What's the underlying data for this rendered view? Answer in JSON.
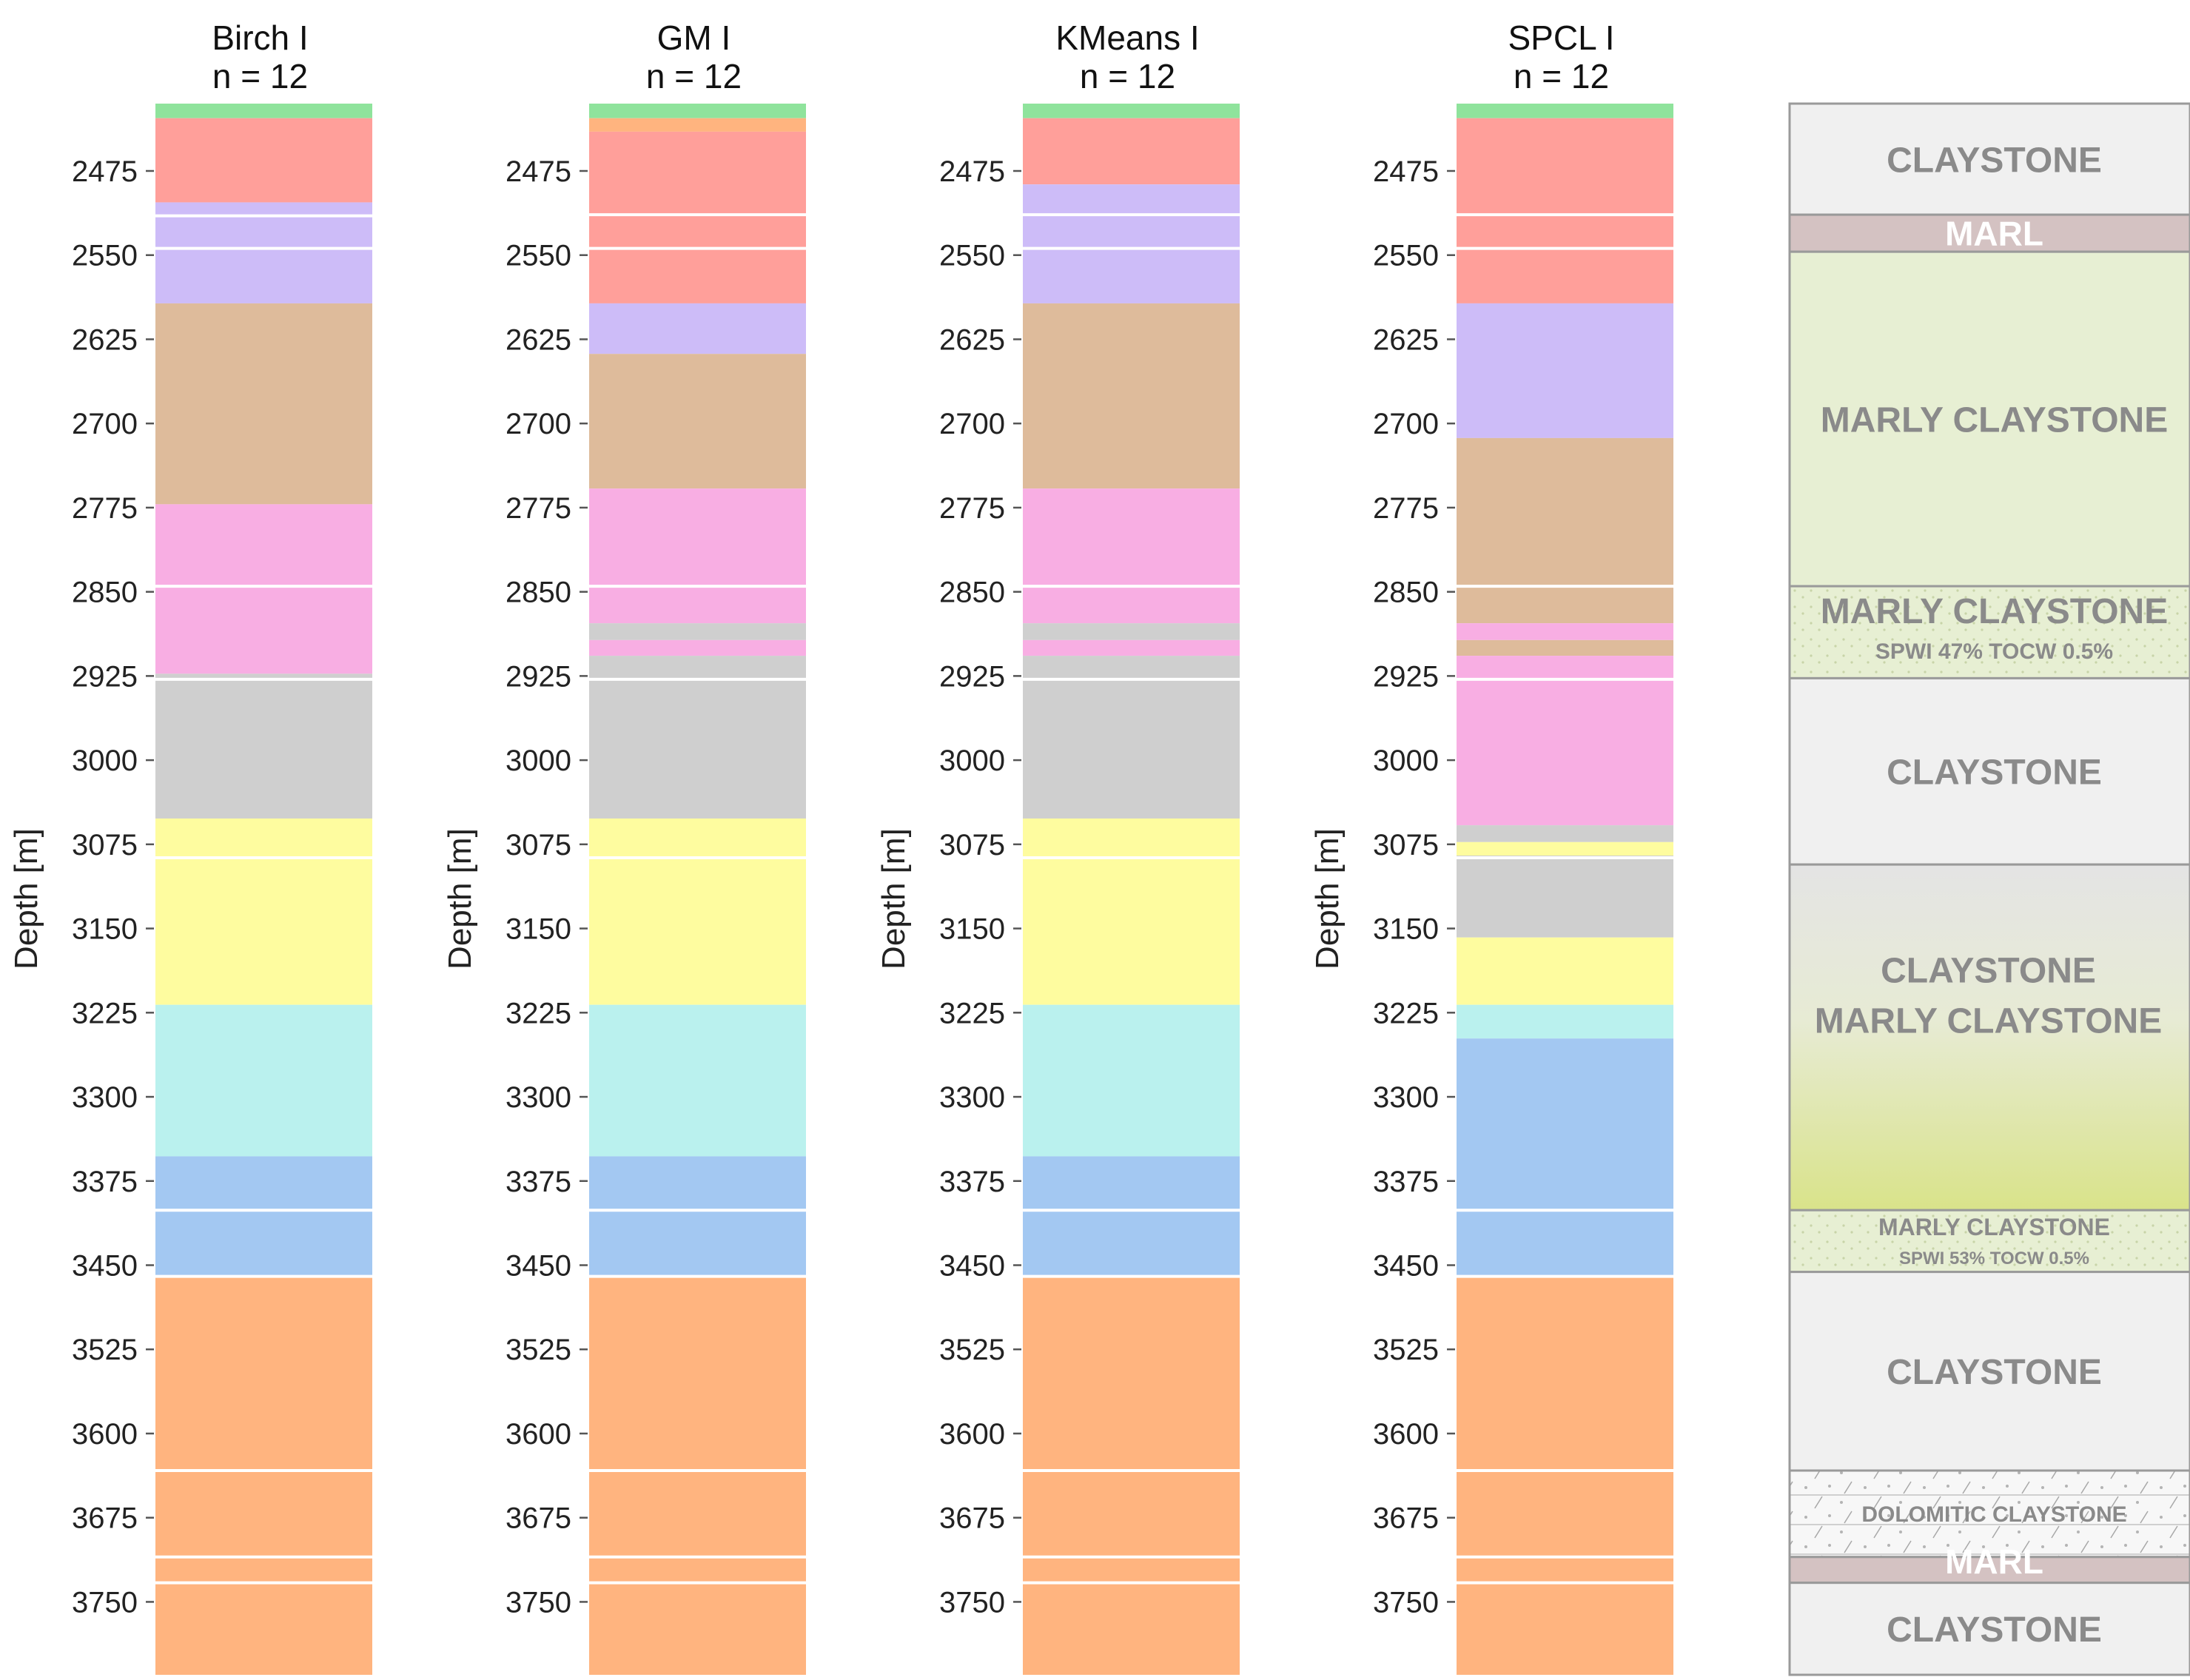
{
  "chart_data": {
    "type": "strip",
    "depth_range": [
      2415,
      3815
    ],
    "ylabel": "Depth [m]",
    "yticks": [
      2475,
      2550,
      2625,
      2700,
      2775,
      2850,
      2925,
      3000,
      3075,
      3150,
      3225,
      3300,
      3375,
      3450,
      3525,
      3600,
      3675,
      3750
    ],
    "cluster_colors": {
      "green": "#8fe39c",
      "red": "#ff9f9a",
      "lavender": "#cdbcf8",
      "tan": "#debb9b",
      "pink": "#f8aee3",
      "grey": "#cfcfcf",
      "yellow": "#fefc9f",
      "cyan": "#baf1ee",
      "blue": "#a3c8f2",
      "orange": "#ffb47f"
    },
    "columns": [
      {
        "title": "Birch I",
        "subtitle": "n = 12",
        "segments": [
          {
            "from": 2415,
            "to": 2428,
            "cluster": "green"
          },
          {
            "from": 2428,
            "to": 2503,
            "cluster": "red"
          },
          {
            "from": 2503,
            "to": 2593,
            "cluster": "lavender"
          },
          {
            "from": 2593,
            "to": 2772,
            "cluster": "tan"
          },
          {
            "from": 2772,
            "to": 2923,
            "cluster": "pink"
          },
          {
            "from": 2923,
            "to": 3052,
            "cluster": "grey"
          },
          {
            "from": 3052,
            "to": 3218,
            "cluster": "yellow"
          },
          {
            "from": 3218,
            "to": 3353,
            "cluster": "cyan"
          },
          {
            "from": 3353,
            "to": 3461,
            "cluster": "blue"
          },
          {
            "from": 3461,
            "to": 3815,
            "cluster": "orange"
          }
        ],
        "lines": [
          2515,
          2544,
          2845,
          2928,
          3087,
          3401,
          3460,
          3633,
          3710,
          3733
        ]
      },
      {
        "title": "GM I",
        "subtitle": "n = 12",
        "segments": [
          {
            "from": 2415,
            "to": 2428,
            "cluster": "green"
          },
          {
            "from": 2428,
            "to": 2440,
            "cluster": "orange"
          },
          {
            "from": 2440,
            "to": 2593,
            "cluster": "red"
          },
          {
            "from": 2593,
            "to": 2638,
            "cluster": "lavender"
          },
          {
            "from": 2638,
            "to": 2758,
            "cluster": "tan"
          },
          {
            "from": 2758,
            "to": 2878,
            "cluster": "pink"
          },
          {
            "from": 2878,
            "to": 2893,
            "cluster": "grey"
          },
          {
            "from": 2893,
            "to": 2907,
            "cluster": "pink"
          },
          {
            "from": 2907,
            "to": 3052,
            "cluster": "grey"
          },
          {
            "from": 3052,
            "to": 3218,
            "cluster": "yellow"
          },
          {
            "from": 3218,
            "to": 3353,
            "cluster": "cyan"
          },
          {
            "from": 3353,
            "to": 3461,
            "cluster": "blue"
          },
          {
            "from": 3461,
            "to": 3815,
            "cluster": "orange"
          }
        ],
        "lines": [
          2514,
          2544,
          2845,
          2928,
          3087,
          3401,
          3460,
          3633,
          3710,
          3733
        ]
      },
      {
        "title": "KMeans I",
        "subtitle": "n = 12",
        "segments": [
          {
            "from": 2415,
            "to": 2428,
            "cluster": "green"
          },
          {
            "from": 2428,
            "to": 2487,
            "cluster": "red"
          },
          {
            "from": 2487,
            "to": 2593,
            "cluster": "lavender"
          },
          {
            "from": 2593,
            "to": 2758,
            "cluster": "tan"
          },
          {
            "from": 2758,
            "to": 2878,
            "cluster": "pink"
          },
          {
            "from": 2878,
            "to": 2893,
            "cluster": "grey"
          },
          {
            "from": 2893,
            "to": 2907,
            "cluster": "pink"
          },
          {
            "from": 2907,
            "to": 3052,
            "cluster": "grey"
          },
          {
            "from": 3052,
            "to": 3218,
            "cluster": "yellow"
          },
          {
            "from": 3218,
            "to": 3353,
            "cluster": "cyan"
          },
          {
            "from": 3353,
            "to": 3461,
            "cluster": "blue"
          },
          {
            "from": 3461,
            "to": 3815,
            "cluster": "orange"
          }
        ],
        "lines": [
          2514,
          2544,
          2845,
          2928,
          3087,
          3401,
          3460,
          3633,
          3710,
          3733
        ]
      },
      {
        "title": "SPCL I",
        "subtitle": "n = 12",
        "segments": [
          {
            "from": 2415,
            "to": 2428,
            "cluster": "green"
          },
          {
            "from": 2428,
            "to": 2593,
            "cluster": "red"
          },
          {
            "from": 2593,
            "to": 2713,
            "cluster": "lavender"
          },
          {
            "from": 2713,
            "to": 2878,
            "cluster": "tan"
          },
          {
            "from": 2878,
            "to": 2893,
            "cluster": "pink"
          },
          {
            "from": 2893,
            "to": 2907,
            "cluster": "tan"
          },
          {
            "from": 2907,
            "to": 3058,
            "cluster": "pink"
          },
          {
            "from": 3058,
            "to": 3073,
            "cluster": "grey"
          },
          {
            "from": 3073,
            "to": 3085,
            "cluster": "yellow"
          },
          {
            "from": 3085,
            "to": 3158,
            "cluster": "grey"
          },
          {
            "from": 3158,
            "to": 3218,
            "cluster": "yellow"
          },
          {
            "from": 3218,
            "to": 3248,
            "cluster": "cyan"
          },
          {
            "from": 3248,
            "to": 3461,
            "cluster": "blue"
          },
          {
            "from": 3461,
            "to": 3815,
            "cluster": "orange"
          }
        ],
        "lines": [
          2514,
          2544,
          2845,
          2928,
          3087,
          3401,
          3460,
          3633,
          3710,
          3733
        ]
      }
    ],
    "lithology": [
      {
        "from": 2415,
        "to": 2514,
        "label": "CLAYSTONE",
        "subtitle": "",
        "fill": "#f0f0f0",
        "gradient_to": "",
        "pattern": "",
        "label_color": "#8a8a8a"
      },
      {
        "from": 2514,
        "to": 2547,
        "label": "MARL",
        "subtitle": "",
        "fill": "#d4c2c2",
        "gradient_to": "",
        "pattern": "",
        "label_color": "#ffffff"
      },
      {
        "from": 2547,
        "to": 2845,
        "label": "MARLY CLAYSTONE",
        "subtitle": "",
        "fill": "#e7efd3",
        "gradient_to": "",
        "pattern": "",
        "label_color": "#8a8a8a"
      },
      {
        "from": 2845,
        "to": 2927,
        "label": "MARLY CLAYSTONE",
        "subtitle": "SPWI 47% TOCW 0.5%",
        "fill": "#e7efd3",
        "gradient_to": "",
        "pattern": "dots",
        "label_color": "#8a8a8a"
      },
      {
        "from": 2927,
        "to": 3093,
        "label": "CLAYSTONE",
        "subtitle": "",
        "fill": "#f0f0f0",
        "gradient_to": "",
        "pattern": "",
        "label_color": "#8a8a8a"
      },
      {
        "from": 3093,
        "to": 3401,
        "label": "CLAYSTONE MARLY CLAYSTONE",
        "subtitle": "",
        "fill": "#e4e4e4",
        "gradient_to": "#d9e38a",
        "pattern": "",
        "label_color": "#8a8a8a"
      },
      {
        "from": 3401,
        "to": 3456,
        "label": "MARLY CLAYSTONE",
        "subtitle": "SPWI 53% TOCW 0.5%",
        "fill": "#e7efd3",
        "gradient_to": "",
        "pattern": "dots",
        "label_color": "#8a8a8a"
      },
      {
        "from": 3456,
        "to": 3633,
        "label": "CLAYSTONE",
        "subtitle": "",
        "fill": "#f0f0f0",
        "gradient_to": "",
        "pattern": "",
        "label_color": "#8a8a8a"
      },
      {
        "from": 3633,
        "to": 3710,
        "label": "DOLOMITIC CLAYSTONE",
        "subtitle": "",
        "fill": "#f7f7f7",
        "gradient_to": "",
        "pattern": "dolomite",
        "label_color": "#8a8a8a"
      },
      {
        "from": 3710,
        "to": 3733,
        "label": "MARL",
        "subtitle": "",
        "fill": "#d4c2c2",
        "gradient_to": "",
        "pattern": "",
        "label_color": "#ffffff"
      },
      {
        "from": 3733,
        "to": 3815,
        "label": "CLAYSTONE",
        "subtitle": "",
        "fill": "#f0f0f0",
        "gradient_to": "",
        "pattern": "",
        "label_color": "#8a8a8a"
      }
    ]
  }
}
